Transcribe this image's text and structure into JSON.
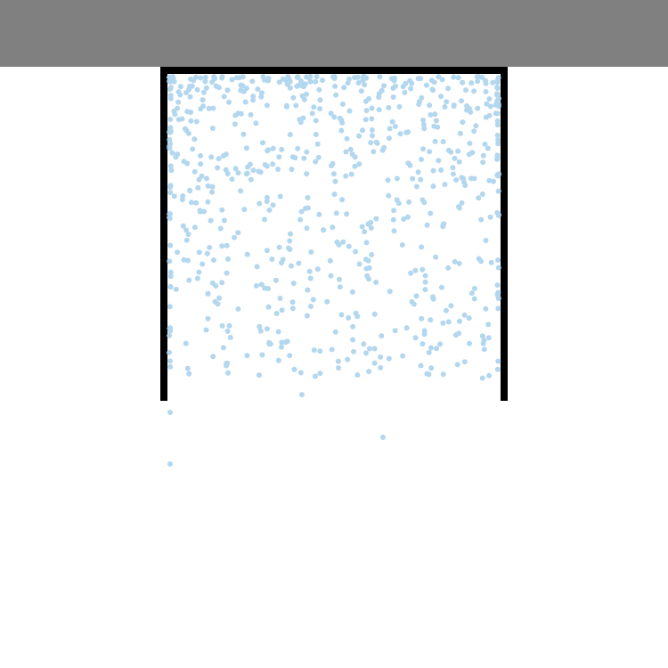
{
  "colors": {
    "background": "#ffffff",
    "top_bar": "#808080",
    "container_wall": "#000000",
    "particle": "#b3d7ee"
  },
  "particles": {
    "count_inside": 720,
    "escaped_count": 4
  }
}
